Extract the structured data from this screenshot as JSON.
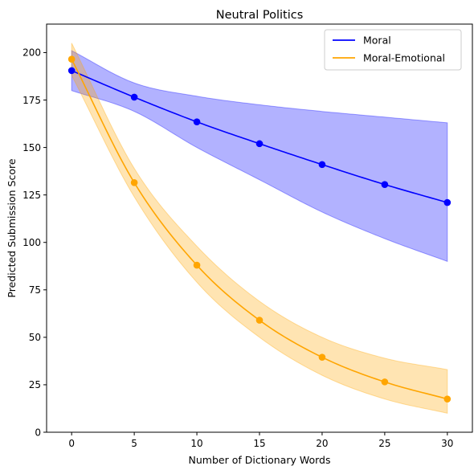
{
  "chart_data": {
    "type": "line",
    "title": "Neutral Politics",
    "xlabel": "Number of Dictionary Words",
    "ylabel": "Predicted Submission Score",
    "xlim": [
      -2,
      32
    ],
    "ylim": [
      0,
      215
    ],
    "xticks": [
      0,
      5,
      10,
      15,
      20,
      25,
      30
    ],
    "yticks": [
      0,
      25,
      50,
      75,
      100,
      125,
      150,
      175,
      200
    ],
    "grid": false,
    "legend_position": "top-right",
    "series": [
      {
        "name": "Moral",
        "color": "#0000ff",
        "band_color": "#0000ff",
        "x": [
          0,
          5,
          10,
          15,
          20,
          25,
          30
        ],
        "values": [
          190.5,
          176.5,
          163.5,
          152,
          141,
          130.5,
          121
        ],
        "ci_lower": [
          180,
          169,
          150,
          133,
          116,
          102,
          90
        ],
        "ci_upper": [
          201,
          184,
          177,
          172.5,
          169,
          166,
          163
        ]
      },
      {
        "name": "Moral-Emotional",
        "color": "#ffa500",
        "band_color": "#ffa500",
        "x": [
          0,
          5,
          10,
          15,
          20,
          25,
          30
        ],
        "values": [
          196.5,
          131.5,
          88,
          59,
          39.5,
          26.5,
          17.5
        ],
        "ci_lower": [
          188,
          124,
          79,
          50,
          30,
          17.5,
          10
        ],
        "ci_upper": [
          205,
          139,
          98,
          69,
          50,
          39,
          33
        ]
      }
    ]
  }
}
